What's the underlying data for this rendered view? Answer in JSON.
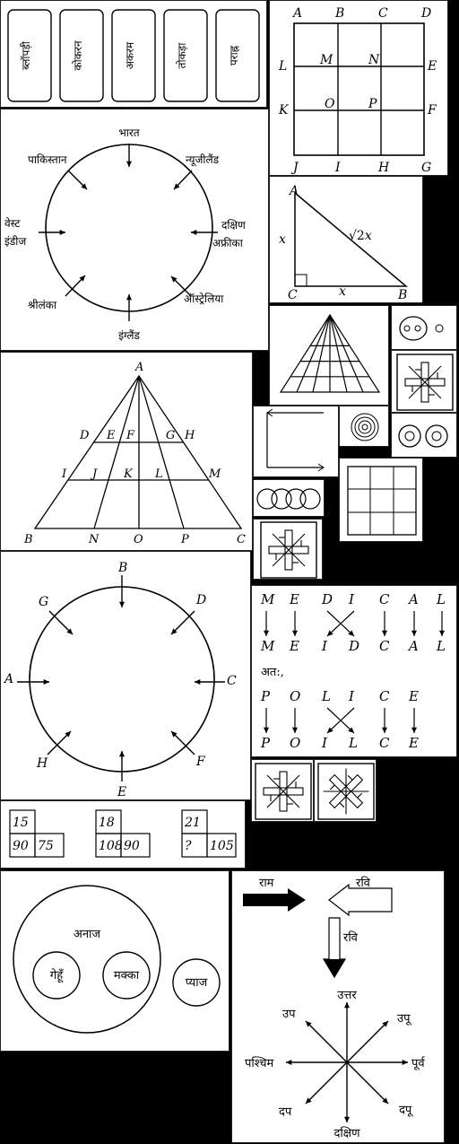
{
  "cards": [
    "ब्लॉपड़ी",
    "कोकरन",
    "अकरम",
    "तोकड़ा",
    "पराह्न"
  ],
  "grid_labels": {
    "top": [
      "A",
      "B",
      "C",
      "D"
    ],
    "bottom": [
      "J",
      "I",
      "H",
      "G"
    ],
    "left": [
      "L",
      "K"
    ],
    "right": [
      "E",
      "F"
    ],
    "inner": [
      "M",
      "N",
      "O",
      "P"
    ]
  },
  "country_circle": {
    "top": "भारत",
    "top_left": "पाकिस्तान",
    "top_right": "न्यूजीलैंड",
    "left_1": "वेस्ट",
    "left_2": "इंडीज",
    "right_1": "दक्षिण",
    "right_2": "अफ्रीका",
    "bottom_left": "श्रीलंका",
    "bottom_right": "ऑस्ट्रेलिया",
    "bottom": "इंग्लैंड"
  },
  "right_triangle": {
    "A": "A",
    "B": "B",
    "C": "C",
    "left_side": "x",
    "bottom_side": "x",
    "hyp_root": "√2",
    "hyp_x": "x"
  },
  "big_triangle": {
    "apex": "A",
    "row1": [
      "D",
      "E",
      "F",
      "G",
      "H"
    ],
    "row2": [
      "I",
      "J",
      "K",
      "L",
      "M"
    ],
    "base": [
      "B",
      "N",
      "O",
      "P",
      "C"
    ]
  },
  "letter_circle": {
    "top": "B",
    "top_left": "G",
    "top_right": "D",
    "left": "A",
    "right": "C",
    "bottom_left": "H",
    "bottom_right": "F",
    "bottom": "E"
  },
  "coding": {
    "top": [
      "M",
      "E",
      "D",
      "I",
      "C",
      "A",
      "L"
    ],
    "top_result": [
      "M",
      "E",
      "I",
      "D",
      "C",
      "A",
      "L"
    ],
    "therefore": "अत:,",
    "bottom": [
      "P",
      "O",
      "L",
      "I",
      "C",
      "E"
    ],
    "bottom_result": [
      "P",
      "O",
      "I",
      "L",
      "C",
      "E"
    ]
  },
  "number_boxes": [
    {
      "top": "15",
      "bl": "90",
      "br": "75"
    },
    {
      "top": "18",
      "bl": "108",
      "br": "90"
    },
    {
      "top": "21",
      "bl": "?",
      "br": "105"
    }
  ],
  "venn": {
    "outer": "अनाज",
    "c1": "गेहूँ",
    "c2": "मक्का",
    "outside": "प्याज"
  },
  "direction": {
    "ram": "राम",
    "ravi": "रवि",
    "ravi2": "रवि",
    "n": "उत्तर",
    "ne": "उपू",
    "e": "पूर्व",
    "se": "दपू",
    "s": "दक्षिण",
    "sw": "दप",
    "w": "पश्चिम",
    "nw": "उप"
  }
}
